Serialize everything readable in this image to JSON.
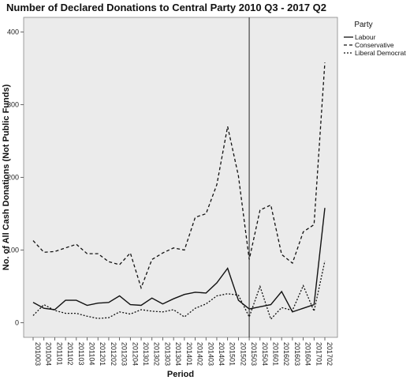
{
  "chart_data": {
    "type": "line",
    "title": "Number of Declared Donations to Central Party 2010 Q3 - 2017 Q2",
    "xlabel": "Period",
    "ylabel": "No. of All Cash Donations (Not Public Funds)",
    "ylim": [
      -20,
      420
    ],
    "yticks": [
      0,
      100,
      200,
      300,
      400
    ],
    "categories": [
      "201003",
      "201004",
      "201101",
      "201102",
      "201103",
      "201104",
      "201201",
      "201202",
      "201203",
      "201204",
      "201301",
      "201302",
      "201303",
      "201304",
      "201401",
      "201402",
      "201403",
      "201404",
      "201501",
      "201502",
      "201503",
      "201504",
      "201601",
      "201602",
      "201603",
      "201604",
      "201701",
      "201702"
    ],
    "reference_line_x": "201503",
    "legend": {
      "title": "Party",
      "position": "right"
    },
    "grid": false,
    "series": [
      {
        "name": "Labour",
        "dash": "solid",
        "color": "#111111",
        "values": [
          28,
          20,
          18,
          31,
          31,
          24,
          27,
          28,
          37,
          25,
          24,
          34,
          26,
          33,
          39,
          42,
          41,
          55,
          75,
          31,
          19,
          22,
          25,
          43,
          15,
          20,
          25,
          158
        ]
      },
      {
        "name": "Conservative",
        "dash": "dashed",
        "color": "#111111",
        "values": [
          113,
          97,
          98,
          103,
          108,
          95,
          95,
          84,
          80,
          96,
          48,
          87,
          96,
          103,
          100,
          145,
          150,
          190,
          270,
          202,
          87,
          155,
          162,
          94,
          82,
          125,
          135,
          358
        ]
      },
      {
        "name": "Liberal Democrat",
        "dash": "dotted",
        "color": "#111111",
        "values": [
          10,
          25,
          17,
          13,
          13,
          9,
          6,
          7,
          15,
          12,
          18,
          16,
          15,
          18,
          8,
          20,
          26,
          37,
          40,
          38,
          8,
          50,
          5,
          21,
          17,
          51,
          16,
          85
        ]
      }
    ]
  }
}
